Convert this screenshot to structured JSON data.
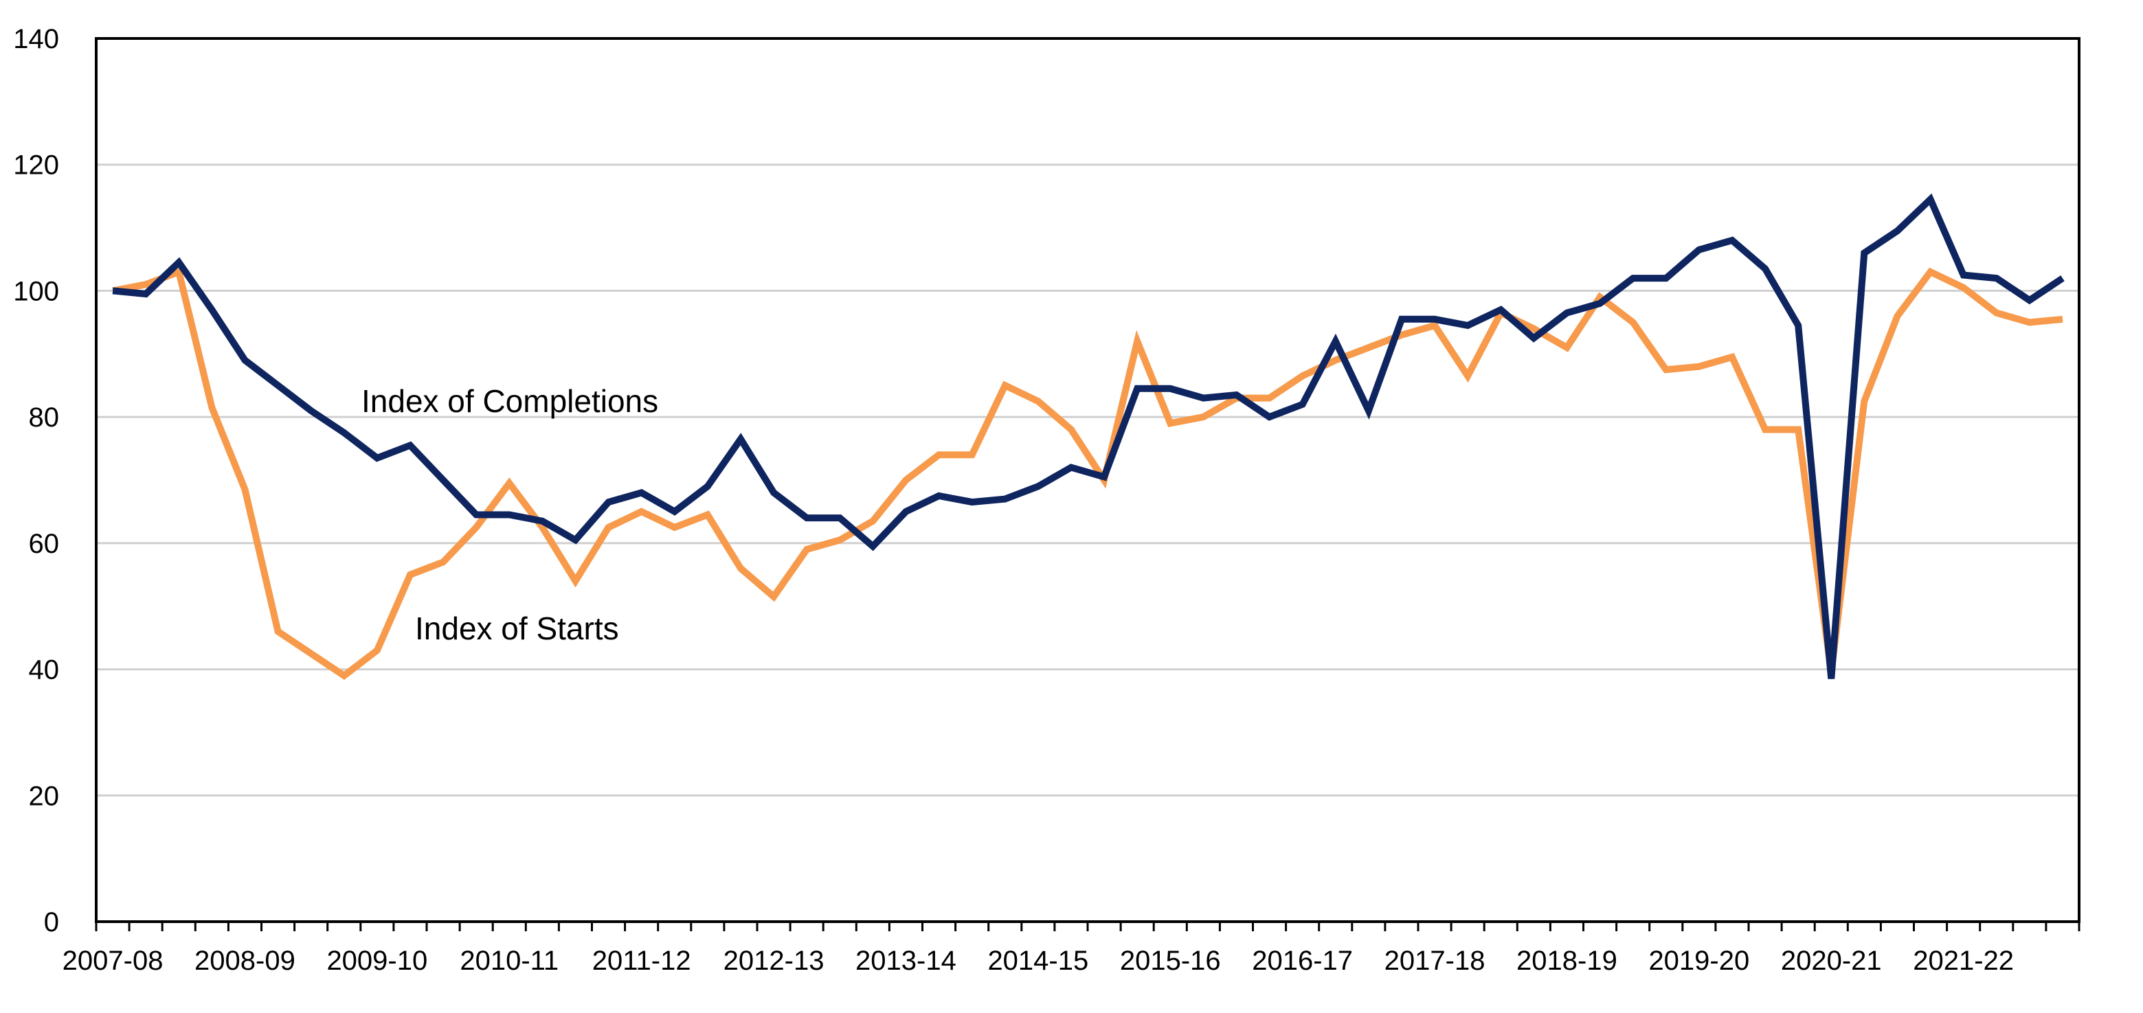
{
  "chart_data": {
    "type": "line",
    "title": "",
    "xlabel": "",
    "ylabel": "",
    "ylim": [
      0,
      140
    ],
    "yticks": [
      "0",
      "20",
      "40",
      "60",
      "80",
      "100",
      "120",
      "140"
    ],
    "grid": "horizontal",
    "x_tick_labels": [
      "2007-08",
      "2008-09",
      "2009-10",
      "2010-11",
      "2011-12",
      "2012-13",
      "2013-14",
      "2014-15",
      "2015-16",
      "2016-17",
      "2017-18",
      "2018-19",
      "2019-20",
      "2020-21",
      "2021-22"
    ],
    "quarters": 60,
    "annotations": [
      {
        "text": "Index of Completions",
        "series": 0
      },
      {
        "text": "Index of Starts",
        "series": 1
      }
    ],
    "series": [
      {
        "name": "Index of Completions",
        "color": "#0f2560",
        "values": [
          100,
          99.5,
          104.5,
          97,
          89,
          85,
          81,
          77.5,
          73.5,
          75.5,
          70,
          64.5,
          64.5,
          63.5,
          60.5,
          66.5,
          68,
          65,
          69,
          76.5,
          68,
          64,
          64,
          59.5,
          65,
          67.5,
          66.5,
          67,
          69,
          72,
          70.5,
          84.5,
          84.5,
          83,
          83.5,
          80,
          82,
          92,
          81,
          95.5,
          95.5,
          94.5,
          97,
          92.5,
          96.5,
          98,
          102,
          102,
          106.5,
          108,
          103.5,
          94.5,
          38.5,
          106,
          109.5,
          114.5,
          102.5,
          102,
          98.5,
          102
        ]
      },
      {
        "name": "Index of Starts",
        "color": "#f79a4b",
        "values": [
          100,
          101,
          103,
          81.5,
          68.5,
          46,
          42.5,
          39,
          43,
          55,
          57,
          62.5,
          69.5,
          62.5,
          54,
          62.5,
          65,
          62.5,
          64.5,
          56,
          51.5,
          59,
          60.5,
          63.5,
          70,
          74,
          74,
          85,
          82.5,
          78,
          70,
          92,
          79,
          80,
          83,
          83,
          86.5,
          89,
          91,
          93,
          94.5,
          86.5,
          96.5,
          94,
          91,
          99,
          95,
          87.5,
          88,
          89.5,
          78,
          78,
          39.5,
          82.5,
          96,
          103,
          100.5,
          96.5,
          95,
          95.5
        ]
      }
    ]
  }
}
